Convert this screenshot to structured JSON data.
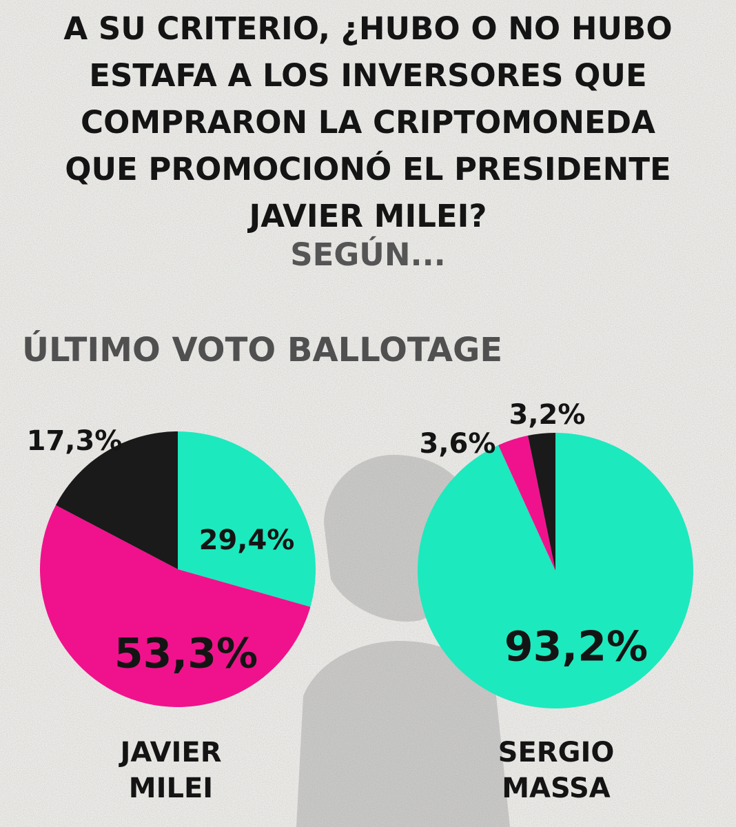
{
  "title_lines": [
    "A SU CRITERIO, ¿HUBO O NO HUBO",
    "ESTAFA A LOS INVERSORES QUE",
    "COMPRARON LA CRIPTOMONEDA",
    "QUE PROMOCIONÓ EL PRESIDENTE",
    "JAVIER MILEI?"
  ],
  "subtitle": "SEGÚN...",
  "section_label": "ÚLTIMO VOTO BALLOTAGE",
  "colors": {
    "teal": "#1de9be",
    "magenta": "#f0128c",
    "black": "#1a1a1a",
    "text": "#141414",
    "grey_text": "#555555"
  },
  "chart_data": [
    {
      "type": "pie",
      "title": "",
      "category_lines": [
        "JAVIER",
        "MILEI"
      ],
      "slices": [
        {
          "value": 29.4,
          "label": "29,4%",
          "color": "#1de9be"
        },
        {
          "value": 53.3,
          "label": "53,3%",
          "color": "#f0128c"
        },
        {
          "value": 17.3,
          "label": "17,3%",
          "color": "#1a1a1a"
        }
      ]
    },
    {
      "type": "pie",
      "title": "",
      "category_lines": [
        "SERGIO",
        "MASSA"
      ],
      "slices": [
        {
          "value": 93.2,
          "label": "93,2%",
          "color": "#1de9be"
        },
        {
          "value": 3.6,
          "label": "3,6%",
          "color": "#f0128c"
        },
        {
          "value": 3.2,
          "label": "3,2%",
          "color": "#1a1a1a"
        }
      ]
    }
  ]
}
